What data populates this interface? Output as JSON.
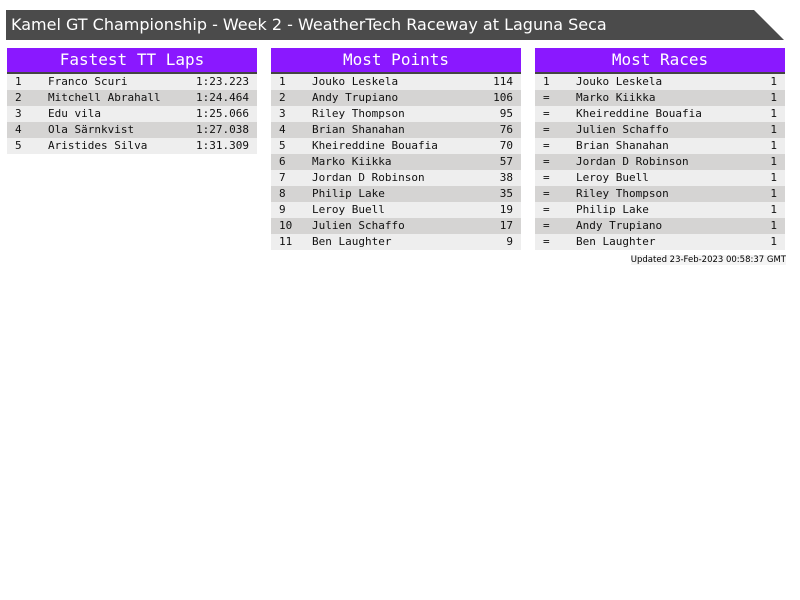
{
  "title": "Kamel GT Championship - Week 2 - WeatherTech Raceway at Laguna Seca",
  "colors": {
    "header_bg": "#8a18ff",
    "title_bg": "#4b4b4b",
    "row_light": "#eeeeee",
    "row_dark": "#d5d4d3"
  },
  "tables": [
    {
      "heading": "Fastest TT Laps",
      "rows": [
        [
          "1",
          "Franco Scuri",
          "1:23.223"
        ],
        [
          "2",
          "Mitchell Abrahall",
          "1:24.464"
        ],
        [
          "3",
          "Edu vila",
          "1:25.066"
        ],
        [
          "4",
          "Ola Särnkvist",
          "1:27.038"
        ],
        [
          "5",
          "Aristides Silva",
          "1:31.309"
        ]
      ]
    },
    {
      "heading": "Most Points",
      "rows": [
        [
          "1",
          "Jouko Leskela",
          "114"
        ],
        [
          "2",
          "Andy Trupiano",
          "106"
        ],
        [
          "3",
          "Riley Thompson",
          "95"
        ],
        [
          "4",
          "Brian Shanahan",
          "76"
        ],
        [
          "5",
          "Kheireddine Bouafia",
          "70"
        ],
        [
          "6",
          "Marko Kiikka",
          "57"
        ],
        [
          "7",
          "Jordan D Robinson",
          "38"
        ],
        [
          "8",
          "Philip Lake",
          "35"
        ],
        [
          "9",
          "Leroy Buell",
          "19"
        ],
        [
          "10",
          "Julien Schaffo",
          "17"
        ],
        [
          "11",
          "Ben Laughter",
          "9"
        ]
      ]
    },
    {
      "heading": "Most Races",
      "rows": [
        [
          "1",
          "Jouko Leskela",
          "1"
        ],
        [
          "=",
          "Marko Kiikka",
          "1"
        ],
        [
          "=",
          "Kheireddine Bouafia",
          "1"
        ],
        [
          "=",
          "Julien Schaffo",
          "1"
        ],
        [
          "=",
          "Brian Shanahan",
          "1"
        ],
        [
          "=",
          "Jordan D Robinson",
          "1"
        ],
        [
          "=",
          "Leroy Buell",
          "1"
        ],
        [
          "=",
          "Riley Thompson",
          "1"
        ],
        [
          "=",
          "Philip Lake",
          "1"
        ],
        [
          "=",
          "Andy Trupiano",
          "1"
        ],
        [
          "=",
          "Ben Laughter",
          "1"
        ]
      ]
    }
  ],
  "updated": "Updated 23-Feb-2023 00:58:37 GMT"
}
